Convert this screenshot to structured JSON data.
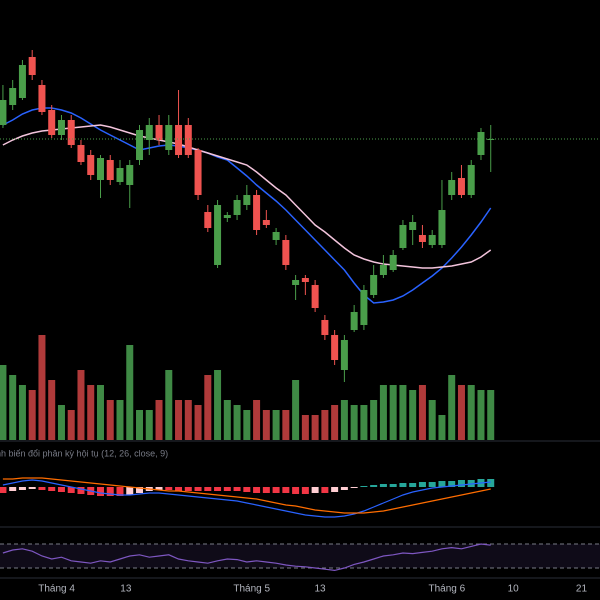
{
  "chart_data": {
    "type": "candlestick",
    "open": [
      475,
      495,
      502,
      543,
      515,
      490,
      465,
      480,
      455,
      445,
      420,
      440,
      418,
      415,
      440,
      460,
      475,
      450,
      475,
      475,
      450,
      388,
      335,
      382,
      385,
      395,
      405,
      380,
      360,
      360,
      315,
      322,
      315,
      280,
      265,
      230,
      270,
      275,
      305,
      325,
      330,
      352,
      370,
      365,
      355,
      355,
      405,
      422,
      405,
      445,
      460
    ],
    "high": [
      515,
      520,
      540,
      550,
      520,
      495,
      485,
      485,
      460,
      450,
      445,
      445,
      440,
      440,
      475,
      482,
      485,
      485,
      510,
      482,
      452,
      395,
      400,
      388,
      405,
      415,
      410,
      390,
      372,
      365,
      325,
      325,
      320,
      285,
      270,
      265,
      295,
      315,
      335,
      345,
      350,
      380,
      385,
      375,
      370,
      420,
      428,
      435,
      440,
      472,
      475
    ],
    "low": [
      472,
      490,
      500,
      520,
      485,
      462,
      460,
      452,
      435,
      420,
      402,
      415,
      415,
      392,
      435,
      445,
      455,
      445,
      442,
      442,
      400,
      368,
      332,
      378,
      380,
      390,
      365,
      372,
      355,
      330,
      300,
      305,
      288,
      260,
      235,
      218,
      268,
      270,
      302,
      322,
      328,
      350,
      355,
      352,
      352,
      352,
      400,
      402,
      402,
      440,
      428
    ],
    "close": [
      500,
      512,
      535,
      525,
      488,
      465,
      480,
      455,
      438,
      425,
      442,
      420,
      432,
      435,
      470,
      475,
      460,
      475,
      445,
      445,
      405,
      372,
      395,
      385,
      400,
      405,
      370,
      375,
      368,
      335,
      320,
      318,
      292,
      265,
      240,
      260,
      288,
      310,
      325,
      335,
      345,
      375,
      378,
      358,
      365,
      390,
      420,
      405,
      435,
      468,
      461
    ],
    "ylim": [
      160,
      600
    ],
    "up_color": "#4a9e4a",
    "down_color": "#ef5350",
    "ma_series": [
      {
        "color": "#2962ff",
        "values": [
          475,
          480,
          486,
          490,
          492,
          492,
          490,
          487,
          482,
          476,
          470,
          465,
          460,
          455,
          450,
          452,
          454,
          455,
          454,
          452,
          450,
          447,
          443,
          440,
          432,
          424,
          415,
          407,
          399,
          390,
          380,
          370,
          360,
          350,
          340,
          330,
          317,
          305,
          297,
          298,
          300,
          304,
          310,
          317,
          324,
          332,
          342,
          353,
          365,
          378,
          392
        ]
      },
      {
        "color": "#f3c4dc",
        "values": [
          455,
          460,
          464,
          467,
          469,
          470,
          471,
          472,
          473,
          474,
          475,
          473,
          470,
          467,
          464,
          462,
          460,
          458,
          456,
          453,
          450,
          447,
          444,
          441,
          438,
          435,
          428,
          420,
          412,
          405,
          395,
          385,
          375,
          368,
          360,
          352,
          345,
          341,
          338,
          336,
          335,
          334,
          333,
          332,
          332,
          333,
          334,
          336,
          338,
          343,
          350
        ]
      }
    ],
    "volume": [
      75,
      65,
      55,
      50,
      105,
      60,
      35,
      30,
      70,
      55,
      55,
      40,
      40,
      95,
      30,
      30,
      40,
      70,
      40,
      40,
      35,
      65,
      70,
      40,
      35,
      30,
      40,
      30,
      30,
      30,
      60,
      25,
      25,
      30,
      35,
      40,
      35,
      35,
      40,
      55,
      55,
      55,
      50,
      55,
      40,
      25,
      65,
      55,
      55,
      50,
      50
    ],
    "volume_ylim": [
      0,
      120
    ],
    "volume_up_color": "#3f8a45",
    "volume_down_color": "#b03a3a",
    "macd_label": "nh biến đổi phân kỳ hội tụ (12, 26, close, 9)",
    "macd": [
      2,
      4,
      6,
      7,
      6,
      4,
      2,
      0,
      -2,
      -4,
      -6,
      -7,
      -8,
      -8,
      -7,
      -6,
      -6,
      -7,
      -8,
      -9,
      -10,
      -11,
      -12,
      -13,
      -14,
      -16,
      -18,
      -20,
      -22,
      -24,
      -26,
      -28,
      -29,
      -30,
      -30,
      -29,
      -27,
      -24,
      -20,
      -16,
      -12,
      -8,
      -5,
      -3,
      -1,
      0,
      1,
      2,
      3,
      4,
      5
    ],
    "signal": [
      8,
      8,
      9,
      9,
      9,
      8,
      7,
      6,
      5,
      4,
      3,
      2,
      1,
      0,
      -1,
      -2,
      -3,
      -4,
      -4,
      -5,
      -6,
      -7,
      -8,
      -9,
      -10,
      -11,
      -12,
      -14,
      -16,
      -18,
      -19,
      -21,
      -23,
      -24,
      -25,
      -26,
      -26,
      -26,
      -25,
      -24,
      -22,
      -20,
      -18,
      -16,
      -14,
      -12,
      -10,
      -8,
      -6,
      -4,
      -2
    ],
    "histogram": [
      -6,
      -4,
      -3,
      -2,
      -3,
      -4,
      -5,
      -6,
      -7,
      -8,
      -9,
      -9,
      -9,
      -8,
      -6,
      -4,
      -3,
      -3,
      -4,
      -4,
      -4,
      -4,
      -4,
      -4,
      -4,
      -5,
      -6,
      -6,
      -6,
      -6,
      -7,
      -7,
      -6,
      -6,
      -5,
      -3,
      -1,
      1,
      2,
      3,
      3,
      4,
      4,
      5,
      5,
      6,
      6,
      7,
      7,
      8,
      8
    ],
    "macd_ylim": [
      -38,
      38
    ],
    "macd_color": "#2962ff",
    "signal_color": "#ff6d00",
    "hist_colors": {
      "pos_grow": "#26a69a",
      "pos_fall": "#b2dfdb",
      "neg_grow": "#f23645",
      "neg_fall": "#ffcdd2"
    },
    "rsi": [
      55,
      60,
      62,
      58,
      50,
      45,
      48,
      42,
      40,
      38,
      42,
      40,
      45,
      50,
      52,
      48,
      50,
      52,
      45,
      42,
      40,
      38,
      42,
      45,
      44,
      40,
      42,
      40,
      38,
      35,
      33,
      32,
      30,
      28,
      26,
      30,
      36,
      40,
      45,
      50,
      52,
      55,
      54,
      56,
      58,
      62,
      64,
      62,
      66,
      70,
      68
    ],
    "rsi_ylim": [
      0,
      100
    ],
    "rsi_levels": [
      30,
      70
    ],
    "rsi_color": "#7e57c2",
    "xlim": [
      -0.3,
      61.2
    ],
    "xticks": [
      {
        "value": 5.5,
        "label": "Tháng 4"
      },
      {
        "value": 12.6,
        "label": "13"
      },
      {
        "value": 25.5,
        "label": "Tháng 5"
      },
      {
        "value": 32.5,
        "label": "13"
      },
      {
        "value": 45.5,
        "label": "Tháng 6"
      },
      {
        "value": 52.3,
        "label": "10"
      },
      {
        "value": 59.3,
        "label": "21"
      }
    ]
  }
}
